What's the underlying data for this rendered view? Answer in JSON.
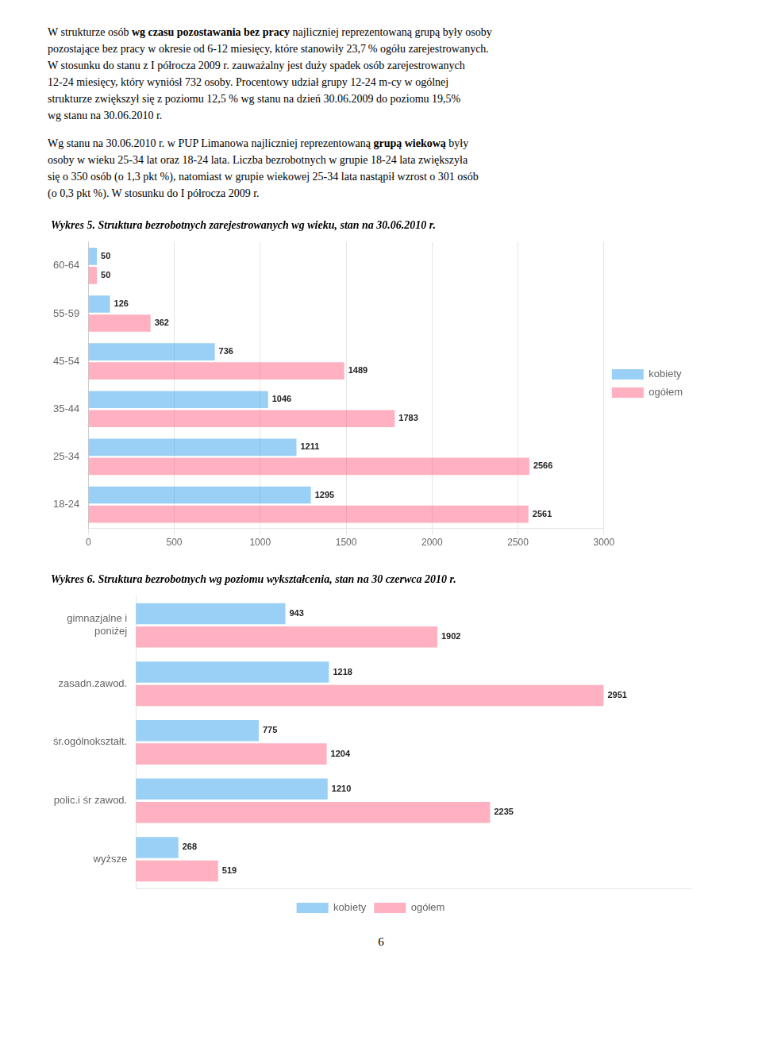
{
  "text_blocks": [
    [
      [
        {
          "text": "W strukturze osób ",
          "bold": false
        },
        {
          "text": "wg czasu pozostawania bez pracy",
          "bold": true
        },
        {
          "text": " najliczniej reprezentowaną grupą były osoby",
          "bold": false
        }
      ],
      [
        {
          "text": "pozostające bez pracy w okresie od 6-12 miesięcy, które stanowiły 23,7 % ogółu zarejestrowanych.",
          "bold": false
        }
      ],
      [
        {
          "text": "W stosunku do stanu z I półrocza 2009 r. zauważalny jest duży spadek osób zarejestrowanych",
          "bold": false
        }
      ],
      [
        {
          "text": "12-24 miesięcy, który wyniósł 732 osoby. Procentowy udział grupy 12-24 m-cy w ogólnej",
          "bold": false
        }
      ],
      [
        {
          "text": "strukturze zwiększył się z poziomu 12,5 % wg stanu na dzień 30.06.2009 do poziomu 19,5%",
          "bold": false
        }
      ],
      [
        {
          "text": "wg stanu na 30.06.2010 r.",
          "bold": false
        }
      ]
    ],
    [
      [
        {
          "text": "Wg stanu na 30.06.2010 r. w PUP Limanowa najliczniej reprezentowaną ",
          "bold": false
        },
        {
          "text": "grupą wiekową",
          "bold": true
        },
        {
          "text": " były",
          "bold": false
        }
      ],
      [
        {
          "text": "osoby w wieku 25-34 lat oraz 18-24 lata. Liczba bezrobotnych w grupie 18-24 lata zwiększyła",
          "bold": false
        }
      ],
      [
        {
          "text": "się o 350 osób (o 1,3 pkt %), natomiast w grupie wiekowej 25-34 lata nastąpił wzrost o 301 osób",
          "bold": false
        }
      ],
      [
        {
          "text": "(o 0,3 pkt %). W stosunku do I półrocza 2009 r.",
          "bold": false
        }
      ]
    ]
  ],
  "chart_data": [
    {
      "type": "bar",
      "orientation": "horizontal",
      "title": "Wykres 5. Struktura bezrobotnych zarejestrowanych wg wieku, stan na 30.06.2010 r.",
      "categories": [
        "18-24",
        "25-34",
        "35-44",
        "45-54",
        "55-59",
        "60-64"
      ],
      "series": [
        {
          "name": "kobiety",
          "values": [
            1295,
            1211,
            1046,
            736,
            126,
            50
          ]
        },
        {
          "name": "ogółem",
          "values": [
            2561,
            2566,
            1783,
            1489,
            362,
            50
          ]
        }
      ],
      "xlim": [
        0,
        3000
      ],
      "xticks": [
        0,
        500,
        1000,
        1500,
        2000,
        2500,
        3000
      ],
      "grid": true,
      "legend": "right",
      "data_labels": true
    },
    {
      "type": "bar",
      "orientation": "horizontal",
      "title": "Wykres 6. Struktura bezrobotnych wg poziomu wykształcenia, stan na 30 czerwca 2010 r.",
      "categories": [
        "wyższe",
        "polic.i śr zawod.",
        "śr.ogólnokształt.",
        "zasadn.zawod.",
        "gimnazjalne i\nponiżej"
      ],
      "series": [
        {
          "name": "kobiety",
          "values": [
            268,
            1210,
            775,
            1218,
            943
          ]
        },
        {
          "name": "ogółem",
          "values": [
            519,
            2235,
            1204,
            2951,
            1902
          ]
        }
      ],
      "xlim": [
        0,
        3500
      ],
      "grid": false,
      "legend": "bottom",
      "data_labels": true,
      "tick_labels": "y"
    }
  ],
  "footer": "6"
}
